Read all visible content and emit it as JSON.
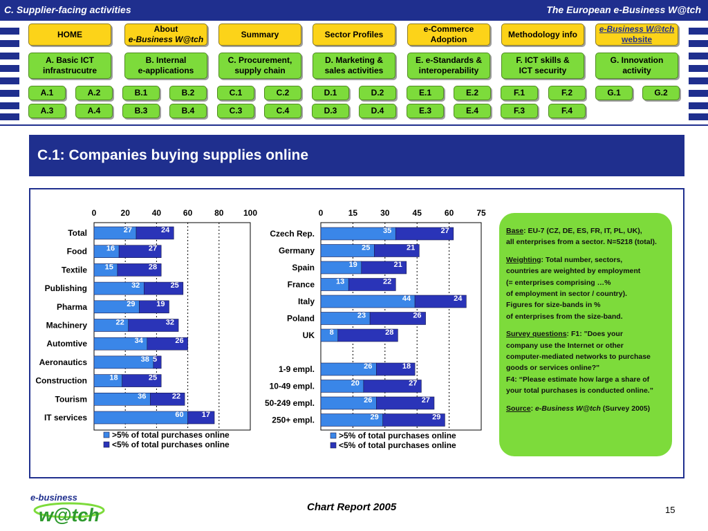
{
  "header": {
    "left_title": "C. Supplier-facing activities",
    "right_title": "The European e-Business W@tch"
  },
  "nav": {
    "row1": [
      {
        "label": "HOME"
      },
      {
        "label_line1": "About",
        "label_line2": "e-Business W@tch"
      },
      {
        "label": "Summary"
      },
      {
        "label": "Sector Profiles"
      },
      {
        "label_line1": "e-Commerce",
        "label_line2": "Adoption"
      },
      {
        "label": "Methodology info"
      },
      {
        "label_line1": "e-Business W@tch",
        "label_line2": "website"
      }
    ],
    "row2": [
      {
        "label_line1": "A. Basic ICT",
        "label_line2": "infrastrucutre"
      },
      {
        "label_line1": "B. Internal",
        "label_line2": "e-applications"
      },
      {
        "label_line1": "C. Procurement,",
        "label_line2": "supply chain"
      },
      {
        "label_line1": "D. Marketing &",
        "label_line2": "sales activities"
      },
      {
        "label_line1": "E. e-Standards &",
        "label_line2": "interoperability"
      },
      {
        "label_line1": "F. ICT skills &",
        "label_line2": "ICT security"
      },
      {
        "label_line1": "G. Innovation",
        "label_line2": "activity"
      }
    ],
    "row3": [
      "A.1",
      "A.2",
      "B.1",
      "B.2",
      "C.1",
      "C.2",
      "D.1",
      "D.2",
      "E.1",
      "E.2",
      "F.1",
      "F.2",
      "G.1",
      "G.2"
    ],
    "row4": [
      "A.3",
      "A.4",
      "B.3",
      "B.4",
      "C.3",
      "C.4",
      "D.3",
      "D.4",
      "E.3",
      "E.4",
      "F.3",
      "F.4"
    ]
  },
  "page_title": "C.1: Companies buying supplies online",
  "colors": {
    "primary": "#1f2f8e",
    "series_light": "#3a86e8",
    "series_dark": "#2a34b8",
    "button_yellow": "#fcd319",
    "button_green": "#7ddb3b"
  },
  "chart_data": [
    {
      "type": "bar",
      "orientation": "horizontal",
      "stacked": true,
      "categories": [
        "Total",
        "Food",
        "Textile",
        "Publishing",
        "Pharma",
        "Machinery",
        "Automtive",
        "Aeronautics",
        "Construction",
        "Tourism",
        "IT services"
      ],
      "series": [
        {
          "name": ">5% of total purchases online",
          "values": [
            27,
            16,
            15,
            32,
            29,
            22,
            34,
            38,
            18,
            36,
            60
          ]
        },
        {
          "name": "<5% of total purchases online",
          "values": [
            24,
            27,
            28,
            25,
            19,
            32,
            26,
            5,
            25,
            22,
            17
          ]
        }
      ],
      "xlim": [
        0,
        100
      ],
      "xticks": [
        0,
        20,
        40,
        60,
        80,
        100
      ],
      "legend_position": "bottom"
    },
    {
      "type": "bar",
      "orientation": "horizontal",
      "stacked": true,
      "categories": [
        "Czech Rep.",
        "Germany",
        "Spain",
        "France",
        "Italy",
        "Poland",
        "UK",
        "1-9 empl.",
        "10-49 empl.",
        "50-249 empl.",
        "250+ empl."
      ],
      "series": [
        {
          "name": ">5% of total purchases online",
          "values": [
            35,
            25,
            19,
            13,
            44,
            23,
            8,
            26,
            20,
            26,
            29
          ]
        },
        {
          "name": "<5% of total purchases online",
          "values": [
            27,
            21,
            21,
            22,
            24,
            26,
            28,
            18,
            27,
            27,
            29
          ]
        }
      ],
      "xlim": [
        0,
        75
      ],
      "xticks": [
        0,
        15,
        30,
        45,
        60,
        75
      ],
      "legend_position": "bottom"
    }
  ],
  "note": {
    "base_label": "Base",
    "base_text1": ": EU-7 (CZ, DE, ES, FR, IT, PL, UK),",
    "base_text2": "all enterprises from a sector. N=5218 (total).",
    "weighting_label": "Weighting",
    "weighting_text1": ": Total number, sectors,",
    "weighting_text2": "countries are weighted by employment",
    "weighting_text3": "(= enterprises comprising …%",
    "weighting_text4": "of employment in sector / country).",
    "weighting_text5": "Figures for size-bands in %",
    "weighting_text6": "of enterprises from the size-band.",
    "survey_label": "Survey questions",
    "survey_text1": ": F1: \"Does your",
    "survey_text2": "company use the Internet or other",
    "survey_text3": "computer-mediated networks to purchase",
    "survey_text4": "goods or services online?\"",
    "survey_text5": "F4: “Please estimate how large a share of",
    "survey_text6": "your total purchases is conducted online.”",
    "source_label": "Source",
    "source_colon": ": ",
    "source_name": "e-Business W@tch",
    "source_year": " (Survey 2005)"
  },
  "footer": {
    "logo_line1": "e-business",
    "logo_line2": "w@tch",
    "title": "Chart Report 2005",
    "page_number": "15"
  }
}
